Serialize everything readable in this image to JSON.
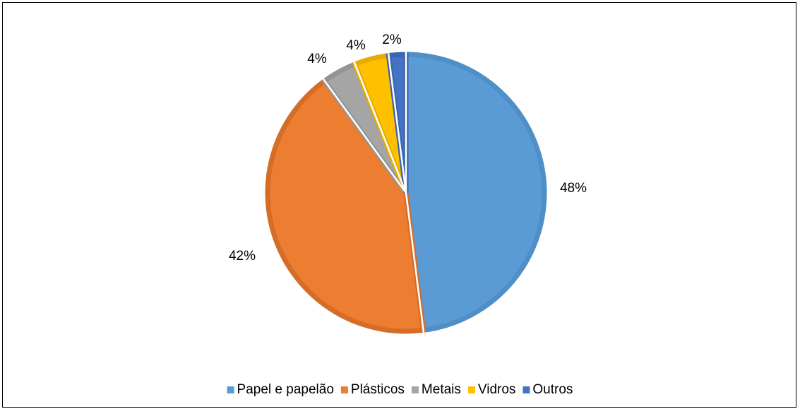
{
  "chart_data": {
    "type": "pie",
    "title": "",
    "categories": [
      "Papel e papelão",
      "Plásticos",
      "Metais",
      "Vidros",
      "Outros"
    ],
    "values": [
      48,
      42,
      4,
      4,
      2
    ],
    "data_labels": [
      "48%",
      "42%",
      "4%",
      "4%",
      "2%"
    ],
    "unit": "%",
    "legend": {
      "placement": "bottom",
      "entries": [
        "Papel e papelão",
        "Plásticos",
        "Metais",
        "Vidros",
        "Outros"
      ]
    },
    "colors": [
      "#5b9bd5",
      "#ed7d31",
      "#a5a5a5",
      "#ffc000",
      "#4472c4"
    ],
    "border_colors": [
      "#4f8fc6",
      "#d46d27",
      "#949494",
      "#e6ad00",
      "#3a65b0"
    ]
  }
}
